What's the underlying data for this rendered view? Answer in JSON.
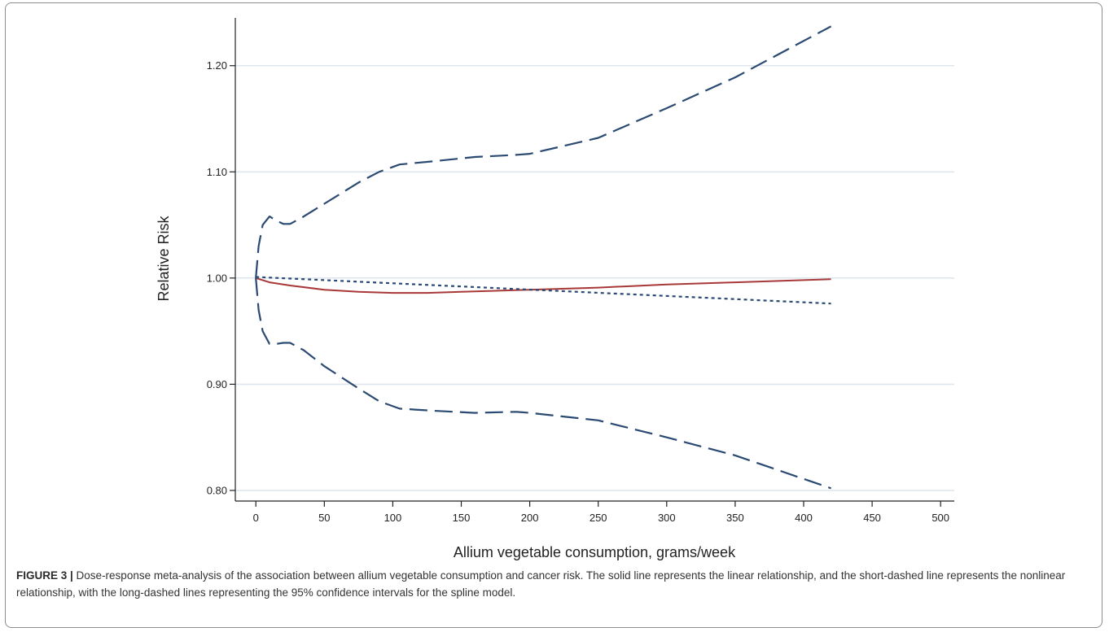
{
  "figure": {
    "caption_label": "FIGURE 3 |",
    "caption_text": " Dose-response meta-analysis of the association between allium vegetable consumption and cancer risk. The solid line represents the linear relationship, and the short-dashed line represents the nonlinear relationship, with the long-dashed lines representing the 95% confidence intervals for the spline model."
  },
  "chart_data": {
    "type": "line",
    "title": "",
    "xlabel": "Allium vegetable consumption, grams/week",
    "ylabel": "Relative Risk",
    "xlim": [
      -15,
      510
    ],
    "ylim": [
      0.79,
      1.245
    ],
    "x_ticks": [
      0,
      50,
      100,
      150,
      200,
      250,
      300,
      350,
      400,
      450,
      500
    ],
    "x_tick_labels": [
      "0",
      "50",
      "100",
      "150",
      "200",
      "250",
      "300",
      "350",
      "400",
      "450",
      "500"
    ],
    "y_ticks": [
      0.8,
      0.9,
      1.0,
      1.1,
      1.2
    ],
    "y_tick_labels": [
      "0.80",
      "0.90",
      "1.00",
      "1.10",
      "1.20"
    ],
    "grid": "horizontal",
    "legend": "none",
    "series": [
      {
        "style": "solid",
        "color": "#a83838",
        "x": [
          0,
          10,
          25,
          50,
          75,
          100,
          125,
          150,
          175,
          200,
          250,
          300,
          350,
          420
        ],
        "y": [
          1.0,
          0.996,
          0.993,
          0.989,
          0.987,
          0.986,
          0.986,
          0.987,
          0.988,
          0.989,
          0.991,
          0.994,
          0.996,
          0.999
        ]
      },
      {
        "style": "short-dash",
        "color": "#2a4a72",
        "x": [
          0,
          420
        ],
        "y": [
          1.001,
          0.976
        ]
      },
      {
        "style": "long-dash",
        "color": "#2a4a72",
        "x": [
          0,
          2,
          5,
          10,
          15,
          20,
          25,
          35,
          50,
          75,
          90,
          105,
          130,
          160,
          190,
          200,
          250,
          300,
          350,
          420
        ],
        "y": [
          1.0,
          1.03,
          1.05,
          1.058,
          1.054,
          1.051,
          1.051,
          1.058,
          1.07,
          1.09,
          1.1,
          1.107,
          1.11,
          1.114,
          1.116,
          1.117,
          1.132,
          1.16,
          1.189,
          1.237
        ]
      },
      {
        "style": "long-dash",
        "color": "#2a4a72",
        "x": [
          0,
          2,
          5,
          10,
          15,
          20,
          25,
          35,
          50,
          75,
          90,
          105,
          130,
          160,
          190,
          200,
          250,
          300,
          350,
          420
        ],
        "y": [
          1.0,
          0.97,
          0.95,
          0.938,
          0.938,
          0.939,
          0.939,
          0.932,
          0.917,
          0.896,
          0.884,
          0.877,
          0.875,
          0.873,
          0.874,
          0.873,
          0.866,
          0.85,
          0.833,
          0.802
        ]
      }
    ]
  }
}
